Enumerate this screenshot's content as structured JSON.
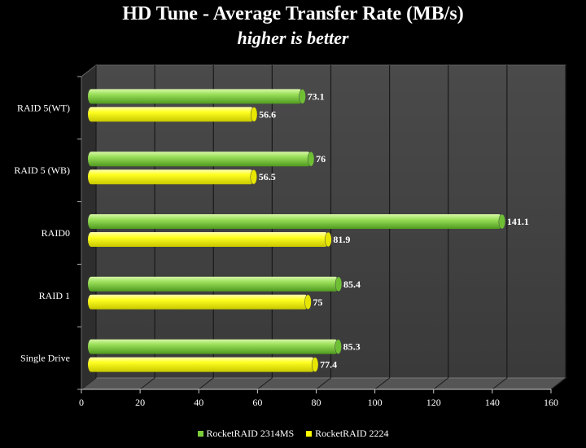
{
  "title": "HD Tune - Average Transfer Rate (MB/s)",
  "subtitle": "higher is better",
  "chart_data": {
    "type": "bar",
    "orientation": "horizontal",
    "title": "HD Tune - Average Transfer Rate (MB/s)",
    "subtitle": "higher is better",
    "categories": [
      "RAID 5(WT)",
      "RAID 5 (WB)",
      "RAID0",
      "RAID 1",
      "Single Drive"
    ],
    "series": [
      {
        "name": "RocketRAID 2314MS",
        "values": [
          73.1,
          76,
          141.1,
          85.4,
          85.3
        ],
        "color": "#7ccd3c"
      },
      {
        "name": "RocketRAID 2224",
        "values": [
          56.6,
          56.5,
          81.9,
          75,
          77.4
        ],
        "color": "#ffff00"
      }
    ],
    "xlim": [
      0,
      160
    ],
    "xticks": [
      0,
      20,
      40,
      60,
      80,
      100,
      120,
      140,
      160
    ],
    "grid": true,
    "legend": "bottom"
  }
}
